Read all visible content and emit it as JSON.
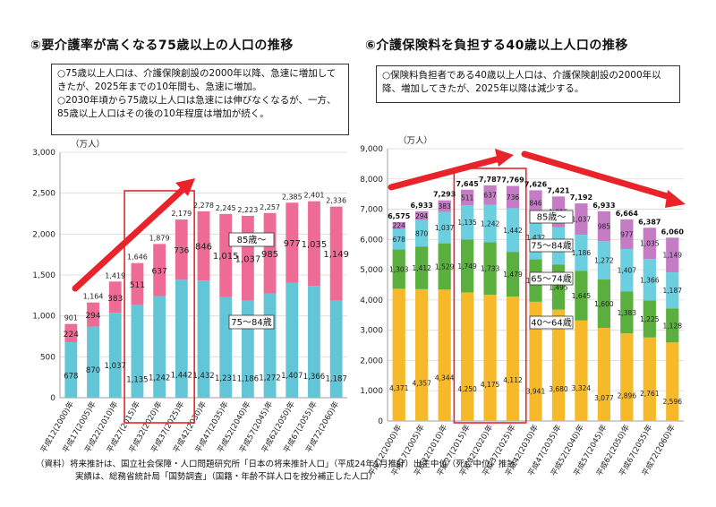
{
  "left_panel": {
    "title": "⑤要介護率が高くなる75歳以上の人口の推移",
    "notes": [
      "○75歳以上人口は、介護保険創設の2000年以降、急速に増加してきたが、2025年までの10年間も、急速に増加。",
      "○2030年頃から75歳以上人口は急速には伸びなくなるが、一方、85歳以上人口はその後の10年程度は増加が続く。"
    ]
  },
  "right_panel": {
    "title": "⑥介護保険料を負担する40歳以上人口の推移",
    "notes": [
      "○保険料負担者である40歳以上人口は、介護保険創設の2000年以降、増加してきたが、2025年以降は減少する。"
    ]
  },
  "chart_data": [
    {
      "type": "bar",
      "stacked": true,
      "unit_label": "（万人）",
      "categories": [
        "平成12(2000)年",
        "平成17(2005)年",
        "平成22(2010)年",
        "平成27(2015)年",
        "平成32(2020)年",
        "平成37(2025)年",
        "平成42(2030)年",
        "平成47(2035)年",
        "平成52(2040)年",
        "平成57(2045)年",
        "平成62(2050)年",
        "平成67(2055)年",
        "平成72(2060)年"
      ],
      "ylim": [
        0,
        3000
      ],
      "yticks": [
        "0",
        "500",
        "1,000",
        "1,500",
        "2,000",
        "2,500",
        "3,000"
      ],
      "series": [
        {
          "name": "75～84歳",
          "color": "#62C6D6",
          "values": [
            678,
            870,
            1037,
            1135,
            1242,
            1442,
            1432,
            1231,
            1186,
            1272,
            1407,
            1366,
            1187
          ]
        },
        {
          "name": "85歳～",
          "color": "#EE6B96",
          "values": [
            224,
            294,
            383,
            511,
            637,
            736,
            846,
            1015,
            1037,
            985,
            977,
            1035,
            1149
          ]
        }
      ],
      "labels": {
        "bottom": [
          "678",
          "870",
          "1,037",
          "1,135",
          "1,242",
          "1,442",
          "1,432",
          "1,231",
          "1,186",
          "1,272",
          "1,407",
          "1,366",
          "1,187"
        ],
        "top": [
          "224",
          "294",
          "383",
          "511",
          "637",
          "736",
          "846",
          "1,015",
          "1,037",
          "985",
          "977",
          "1,035",
          "1,149"
        ],
        "totals": [
          "901",
          "1,164",
          "1,419",
          "1,646",
          "1,879",
          "2,179",
          "2,278",
          "2,245",
          "2,223",
          "2,257",
          "2,385",
          "2,401",
          "2,336"
        ]
      },
      "highlight_range": [
        3,
        5
      ],
      "grid": true
    },
    {
      "type": "bar",
      "stacked": true,
      "unit_label": "（万人）",
      "categories": [
        "平成12(2000)年",
        "平成17(2005)年",
        "平成22(2010)年",
        "平成27(2015)年",
        "平成32(2020)年",
        "平成37(2025)年",
        "平成42(2030)年",
        "平成47(2035)年",
        "平成52(2040)年",
        "平成57(2045)年",
        "平成62(2050)年",
        "平成67(2055)年",
        "平成72(2060)年"
      ],
      "ylim": [
        0,
        9000
      ],
      "yticks": [
        "0",
        "1,000",
        "2,000",
        "3,000",
        "4,000",
        "5,000",
        "6,000",
        "7,000",
        "8,000",
        "9,000"
      ],
      "series": [
        {
          "name": "40～64歳",
          "color": "#F6B92A",
          "values": [
            4371,
            4357,
            4344,
            4250,
            4175,
            4112,
            3941,
            3680,
            3324,
            3077,
            2896,
            2761,
            2596
          ]
        },
        {
          "name": "65～74歳",
          "color": "#5BAF3E",
          "values": [
            1303,
            1412,
            1529,
            1749,
            1733,
            1479,
            1407,
            1495,
            1645,
            1600,
            1383,
            1225,
            1128
          ]
        },
        {
          "name": "75～84歳",
          "color": "#6CCFDF",
          "values": [
            678,
            870,
            1037,
            1135,
            1242,
            1442,
            1432,
            1231,
            1186,
            1272,
            1407,
            1366,
            1187
          ]
        },
        {
          "name": "85歳～",
          "color": "#C47CC4",
          "values": [
            224,
            294,
            383,
            511,
            637,
            736,
            846,
            1015,
            1037,
            985,
            977,
            1035,
            1149
          ]
        }
      ],
      "labels": [
        [
          "4,371",
          "4,357",
          "4,344",
          "4,250",
          "4,175",
          "4,112",
          "3,941",
          "3,680",
          "3,324",
          "3,077",
          "2,896",
          "2,761",
          "2,596"
        ],
        [
          "1,303",
          "1,412",
          "1,529",
          "1,749",
          "1,733",
          "1,479",
          "1,407",
          "1,495",
          "1,645",
          "1,600",
          "1,383",
          "1,225",
          "1,128"
        ],
        [
          "678",
          "870",
          "1,037",
          "1,135",
          "1,242",
          "1,442",
          "1,432",
          "1,231",
          "1,186",
          "1,272",
          "1,407",
          "1,366",
          "1,187"
        ],
        [
          "224",
          "294",
          "383",
          "511",
          "637",
          "736",
          "846",
          "1,015",
          "1,037",
          "985",
          "977",
          "1,035",
          "1,149"
        ]
      ],
      "totals": [
        "6,575",
        "6,933",
        "7,293",
        "7,645",
        "7,787",
        "7,769",
        "7,626",
        "7,421",
        "7,192",
        "6,933",
        "6,664",
        "6,387",
        "6,060"
      ],
      "highlight_range": [
        3,
        5
      ],
      "grid": true
    }
  ],
  "footer": {
    "line1": "（資料）将来推計は、国立社会保障・人口問題研究所「日本の将来推計人口」（平成24年1月推計）出生中位（死亡中位）推計",
    "line2": "実績は、総務省統計局「国勢調査」（国籍・年齢不詳人口を按分補正した人口）"
  },
  "colors": {
    "arrow": "#E8232A",
    "highlight": "#E2262B"
  }
}
